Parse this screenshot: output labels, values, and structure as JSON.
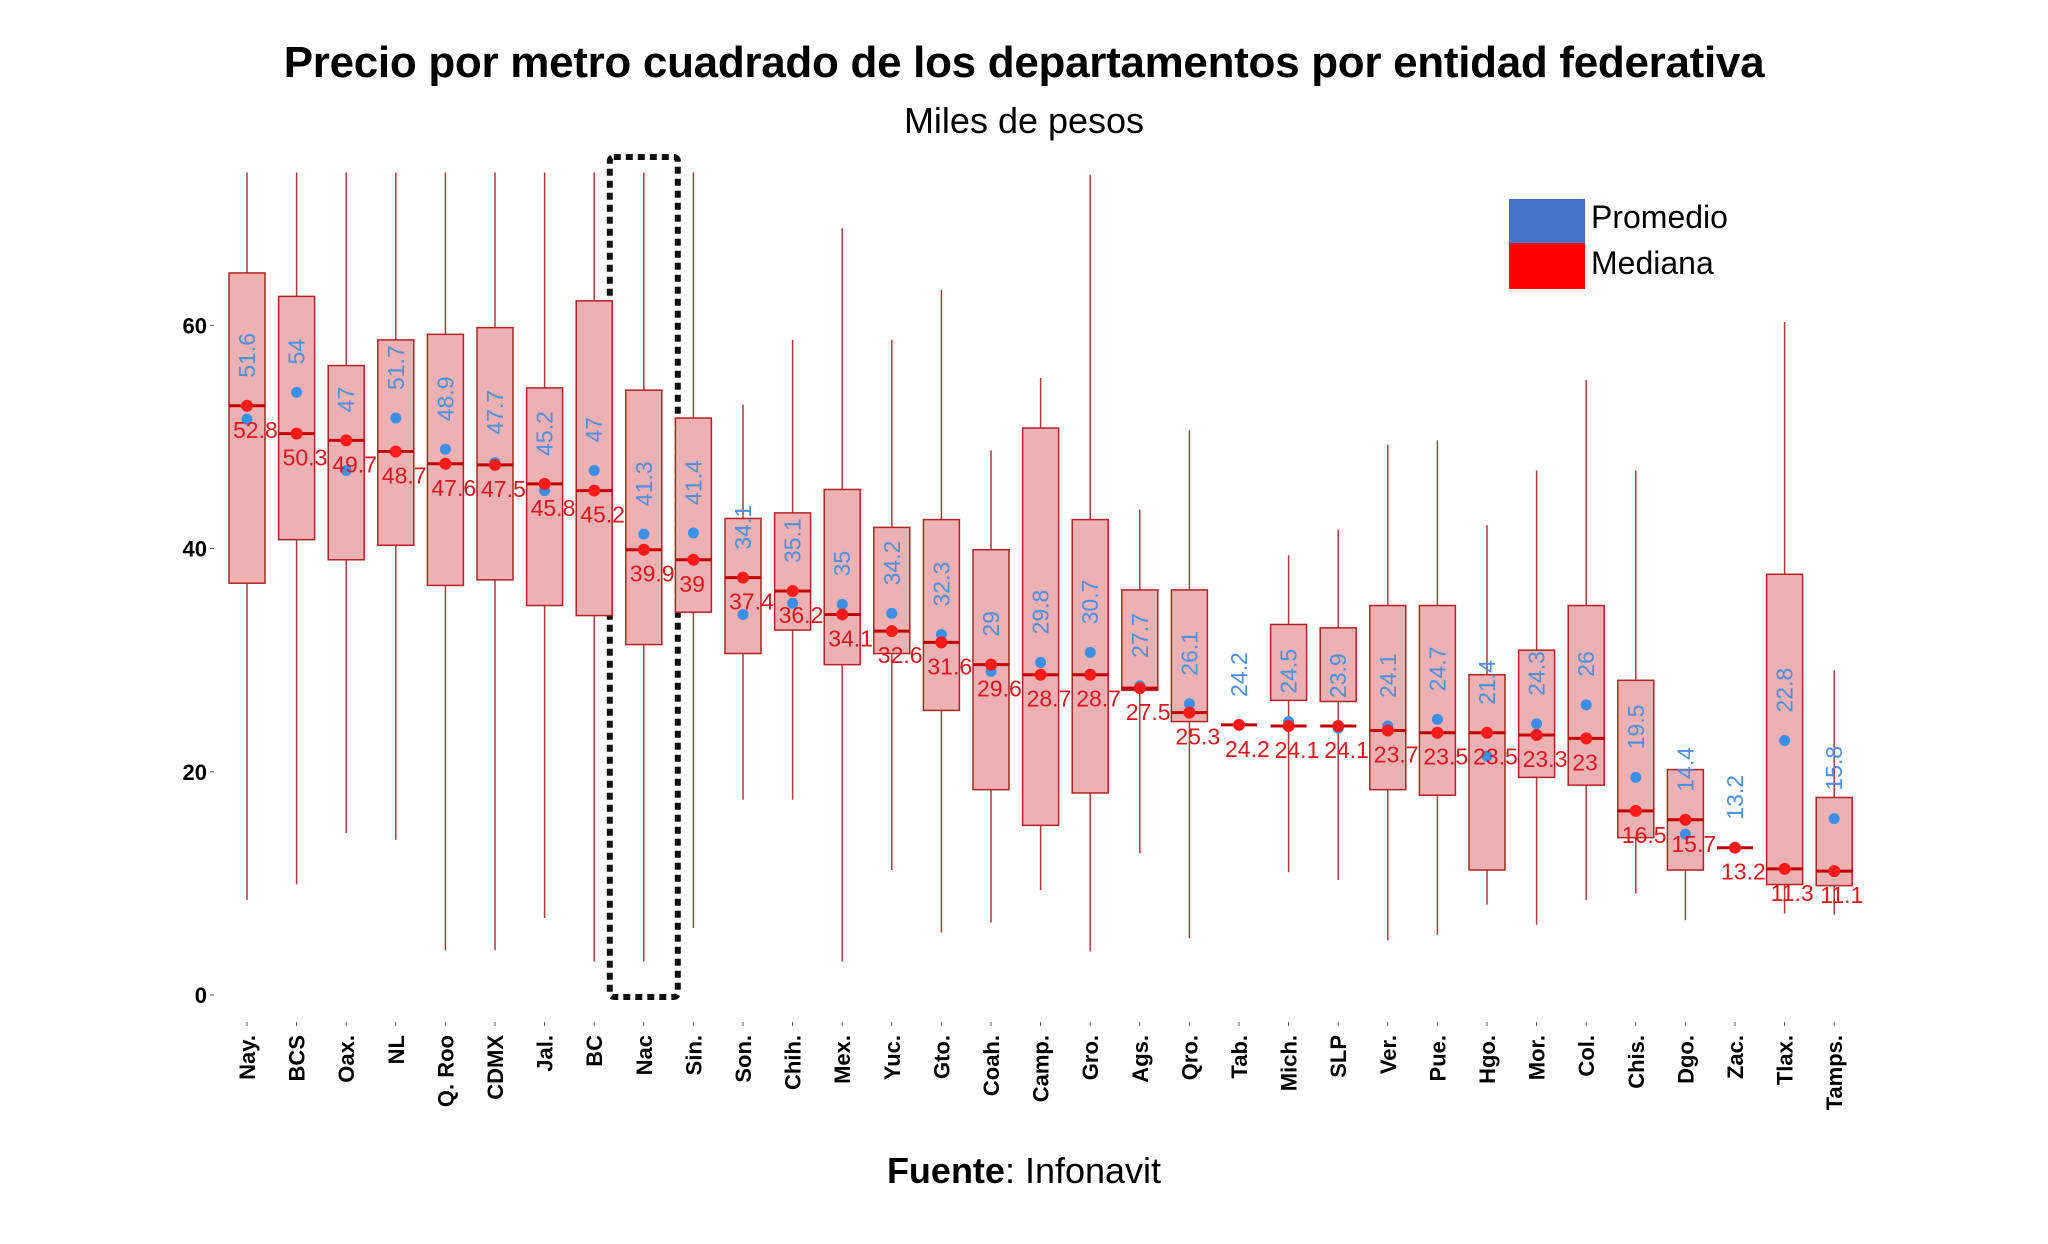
{
  "chart_data": {
    "type": "boxplot",
    "title": "Precio por metro cuadrado de los departamentos por entidad federativa",
    "subtitle": "Miles de pesos",
    "source_label": "Fuente",
    "source_value": ": Infonavit",
    "xlabel": "",
    "ylabel": "",
    "ylim": [
      0,
      74
    ],
    "yticks": [
      0,
      20,
      40,
      60
    ],
    "grid": false,
    "legend_position": "top-right",
    "legend": [
      {
        "name": "Promedio",
        "color": "#4472c4"
      },
      {
        "name": "Mediana",
        "color": "#ff0000"
      }
    ],
    "colors": {
      "box_fill": "#eeb1b3",
      "box_stroke": "#b22222",
      "whisker": "#b03a3a",
      "median_line": "#c00000",
      "median_dot": "#ff1a1a",
      "mean_dot": "#3b8fe6",
      "mean_label": "#4a90e2",
      "median_label": "#e0151b",
      "highlight_border": "#111111"
    },
    "highlight_category": "Nac",
    "categories": [
      "Nay.",
      "BCS",
      "Oax.",
      "NL",
      "Q. Roo",
      "CDMX",
      "Jal.",
      "BC",
      "Nac",
      "Sin.",
      "Son.",
      "Chih.",
      "Mex.",
      "Yuc.",
      "Gto.",
      "Coah.",
      "Camp.",
      "Gro.",
      "Ags.",
      "Qro.",
      "Tab.",
      "Mich.",
      "SLP",
      "Ver.",
      "Pue.",
      "Hgo.",
      "Mor.",
      "Col.",
      "Chis.",
      "Dgo.",
      "Zac.",
      "Tlax.",
      "Tamps."
    ],
    "series": [
      {
        "name": "Promedio",
        "values": [
          51.6,
          54,
          47,
          51.7,
          48.9,
          47.7,
          45.2,
          47,
          41.3,
          41.4,
          34.1,
          35.1,
          35,
          34.2,
          32.3,
          29,
          29.8,
          30.7,
          27.7,
          26.1,
          24.2,
          24.5,
          23.9,
          24.1,
          24.7,
          21.4,
          24.3,
          26,
          19.5,
          14.4,
          13.2,
          22.8,
          15.8
        ]
      },
      {
        "name": "Mediana",
        "values": [
          52.8,
          50.3,
          49.7,
          48.7,
          47.6,
          47.5,
          45.8,
          45.2,
          39.9,
          39,
          37.4,
          36.2,
          34.1,
          32.6,
          31.6,
          29.6,
          28.7,
          28.7,
          27.5,
          25.3,
          24.2,
          24.1,
          24.1,
          23.7,
          23.5,
          23.5,
          23.3,
          23,
          16.5,
          15.7,
          13.2,
          11.3,
          11.1
        ]
      }
    ],
    "boxes": [
      {
        "q1": 36.9,
        "q3": 64.7,
        "whisker_low": 8.5,
        "whisker_high": 73.7
      },
      {
        "q1": 40.8,
        "q3": 62.6,
        "whisker_low": 9.9,
        "whisker_high": 73.7
      },
      {
        "q1": 39.0,
        "q3": 56.4,
        "whisker_low": 14.5,
        "whisker_high": 73.7
      },
      {
        "q1": 40.3,
        "q3": 58.7,
        "whisker_low": 13.9,
        "whisker_high": 73.7
      },
      {
        "q1": 36.7,
        "q3": 59.2,
        "whisker_low": 4.0,
        "whisker_high": 73.7
      },
      {
        "q1": 37.2,
        "q3": 59.8,
        "whisker_low": 4.0,
        "whisker_high": 73.7
      },
      {
        "q1": 34.9,
        "q3": 54.4,
        "whisker_low": 6.9,
        "whisker_high": 73.7
      },
      {
        "q1": 34.0,
        "q3": 62.2,
        "whisker_low": 3.0,
        "whisker_high": 73.7
      },
      {
        "q1": 31.4,
        "q3": 54.2,
        "whisker_low": 3.0,
        "whisker_high": 73.7
      },
      {
        "q1": 34.3,
        "q3": 51.7,
        "whisker_low": 6.0,
        "whisker_high": 73.7
      },
      {
        "q1": 30.6,
        "q3": 42.7,
        "whisker_low": 17.5,
        "whisker_high": 52.9
      },
      {
        "q1": 32.7,
        "q3": 43.2,
        "whisker_low": 17.5,
        "whisker_high": 58.7
      },
      {
        "q1": 29.6,
        "q3": 45.3,
        "whisker_low": 3.0,
        "whisker_high": 68.7
      },
      {
        "q1": 30.6,
        "q3": 41.9,
        "whisker_low": 11.2,
        "whisker_high": 58.7
      },
      {
        "q1": 25.5,
        "q3": 42.6,
        "whisker_low": 5.6,
        "whisker_high": 63.2
      },
      {
        "q1": 18.4,
        "q3": 39.9,
        "whisker_low": 6.5,
        "whisker_high": 48.8
      },
      {
        "q1": 15.2,
        "q3": 50.8,
        "whisker_low": 9.4,
        "whisker_high": 55.3
      },
      {
        "q1": 18.1,
        "q3": 42.6,
        "whisker_low": 3.9,
        "whisker_high": 73.5
      },
      {
        "q1": 27.3,
        "q3": 36.3,
        "whisker_low": 12.7,
        "whisker_high": 43.5
      },
      {
        "q1": 24.5,
        "q3": 36.3,
        "whisker_low": 5.1,
        "whisker_high": 50.6
      },
      {
        "q1": 24.2,
        "q3": 24.2,
        "whisker_low": 24.2,
        "whisker_high": 24.2
      },
      {
        "q1": 26.4,
        "q3": 33.2,
        "whisker_low": 11.0,
        "whisker_high": 39.4
      },
      {
        "q1": 26.3,
        "q3": 32.9,
        "whisker_low": 10.3,
        "whisker_high": 41.7
      },
      {
        "q1": 18.4,
        "q3": 34.9,
        "whisker_low": 4.9,
        "whisker_high": 49.3
      },
      {
        "q1": 17.9,
        "q3": 34.9,
        "whisker_low": 5.4,
        "whisker_high": 49.7
      },
      {
        "q1": 11.2,
        "q3": 28.7,
        "whisker_low": 8.1,
        "whisker_high": 42.1
      },
      {
        "q1": 19.5,
        "q3": 30.9,
        "whisker_low": 6.3,
        "whisker_high": 47.0
      },
      {
        "q1": 18.8,
        "q3": 34.9,
        "whisker_low": 8.5,
        "whisker_high": 55.1
      },
      {
        "q1": 14.1,
        "q3": 28.2,
        "whisker_low": 9.1,
        "whisker_high": 47.0
      },
      {
        "q1": 11.2,
        "q3": 20.2,
        "whisker_low": 6.7,
        "whisker_high": 20.2
      },
      {
        "q1": 13.2,
        "q3": 13.2,
        "whisker_low": 13.2,
        "whisker_high": 13.2
      },
      {
        "q1": 9.9,
        "q3": 37.7,
        "whisker_low": 7.3,
        "whisker_high": 60.3
      },
      {
        "q1": 9.8,
        "q3": 17.7,
        "whisker_low": 7.2,
        "whisker_high": 29.1
      }
    ]
  }
}
